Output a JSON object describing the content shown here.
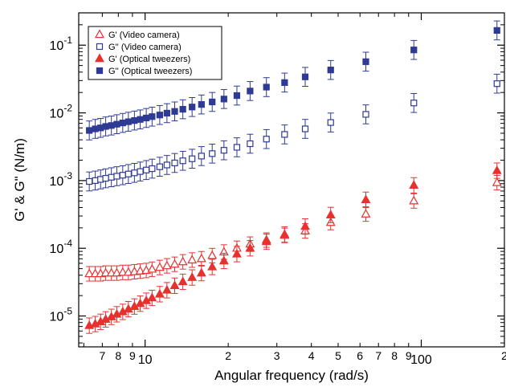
{
  "chart_data": {
    "type": "scatter",
    "xlabel": "Angular frequency (rad/s)",
    "ylabel": "G' & G\" (N/m)",
    "x_scale": "log",
    "y_scale": "log",
    "xlim": [
      5.75,
      200
    ],
    "ylim": [
      3.5e-06,
      0.3
    ],
    "grid": false,
    "legend_position": "top-left",
    "x_major_ticks": [
      {
        "value": 10,
        "label": "10"
      },
      {
        "value": 100,
        "label": "100"
      }
    ],
    "x_minor_ticks": [
      {
        "value": 7,
        "label": "7"
      },
      {
        "value": 8,
        "label": "8"
      },
      {
        "value": 9,
        "label": "9"
      },
      {
        "value": 20,
        "label": "2"
      },
      {
        "value": 30,
        "label": "3"
      },
      {
        "value": 40,
        "label": "4"
      },
      {
        "value": 50,
        "label": "5"
      },
      {
        "value": 60,
        "label": "6"
      },
      {
        "value": 70,
        "label": "7"
      },
      {
        "value": 80,
        "label": "8"
      },
      {
        "value": 90,
        "label": "9"
      },
      {
        "value": 200,
        "label": "2"
      }
    ],
    "y_major_ticks": [
      {
        "value": 1e-05,
        "base": "10",
        "exp": "-5"
      },
      {
        "value": 0.0001,
        "base": "10",
        "exp": "-4"
      },
      {
        "value": 0.001,
        "base": "10",
        "exp": "-3"
      },
      {
        "value": 0.01,
        "base": "10",
        "exp": "-2"
      },
      {
        "value": 0.1,
        "base": "10",
        "exp": "-1"
      }
    ],
    "series": [
      {
        "name": "G' (Video camera)",
        "marker": "triangle-open",
        "color": "#e8302e",
        "x": [
          6.28,
          6.6,
          6.9,
          7.2,
          7.55,
          7.9,
          8.3,
          8.7,
          9.15,
          9.6,
          10.1,
          10.6,
          11.3,
          12.0,
          12.8,
          13.7,
          14.8,
          16.0,
          17.5,
          19.3,
          21.5,
          24.0,
          27.5,
          32.0,
          38.0,
          47.0,
          63.0,
          94.0,
          188.0
        ],
        "y": [
          4.2e-05,
          4.2e-05,
          4.2e-05,
          4.3e-05,
          4.3e-05,
          4.3e-05,
          4.4e-05,
          4.4e-05,
          4.5e-05,
          4.6e-05,
          4.7e-05,
          4.9e-05,
          5.2e-05,
          5.5e-05,
          5.8e-05,
          6.3e-05,
          6.7e-05,
          7e-05,
          7.8e-05,
          8.8e-05,
          0.0001,
          0.000115,
          0.000132,
          0.000155,
          0.00018,
          0.00024,
          0.00032,
          0.0005,
          0.00093
        ],
        "err_factor": 1.28
      },
      {
        "name": "G'' (Video camera)",
        "marker": "square-open",
        "color": "#2e3a94",
        "x": [
          6.28,
          6.6,
          6.9,
          7.2,
          7.55,
          7.9,
          8.3,
          8.7,
          9.15,
          9.6,
          10.1,
          10.6,
          11.3,
          12.0,
          12.8,
          13.7,
          14.8,
          16.0,
          17.5,
          19.3,
          21.5,
          24.0,
          27.5,
          32.0,
          38.0,
          47.0,
          63.0,
          94.0,
          188.0
        ],
        "y": [
          0.00097,
          0.001,
          0.00104,
          0.00108,
          0.00112,
          0.00116,
          0.0012,
          0.00125,
          0.0013,
          0.00136,
          0.00143,
          0.0015,
          0.0016,
          0.0017,
          0.00182,
          0.00196,
          0.0021,
          0.0023,
          0.0025,
          0.0028,
          0.0031,
          0.0035,
          0.0041,
          0.0048,
          0.0058,
          0.0072,
          0.0095,
          0.014,
          0.027
        ],
        "err_factor": 1.38
      },
      {
        "name": "G' (Optical tweezers)",
        "marker": "triangle-filled",
        "color": "#e8302e",
        "x": [
          6.28,
          6.6,
          6.9,
          7.2,
          7.55,
          7.9,
          8.3,
          8.7,
          9.15,
          9.6,
          10.1,
          10.6,
          11.3,
          12.0,
          12.8,
          13.7,
          14.8,
          16.0,
          17.5,
          19.3,
          21.5,
          24.0,
          27.5,
          32.0,
          38.0,
          47.0,
          63.0,
          94.0,
          188.0
        ],
        "y": [
          7.2e-06,
          7.6e-06,
          8.2e-06,
          8.9e-06,
          9.7e-06,
          1.06e-05,
          1.15e-05,
          1.26e-05,
          1.38e-05,
          1.52e-05,
          1.68e-05,
          1.85e-05,
          2.1e-05,
          2.4e-05,
          2.8e-05,
          3.2e-05,
          3.7e-05,
          4.3e-05,
          5.3e-05,
          6.5e-05,
          8.2e-05,
          0.0001,
          0.000125,
          0.00016,
          0.00021,
          0.00031,
          0.00052,
          0.00085,
          0.0014
        ],
        "err_factor": 1.3
      },
      {
        "name": "G'' (Optical tweezers)",
        "marker": "square-filled",
        "color": "#2e3a94",
        "x": [
          6.28,
          6.6,
          6.9,
          7.2,
          7.55,
          7.9,
          8.3,
          8.7,
          9.15,
          9.6,
          10.1,
          10.6,
          11.3,
          12.0,
          12.8,
          13.7,
          14.8,
          16.0,
          17.5,
          19.3,
          21.5,
          24.0,
          27.5,
          32.0,
          38.0,
          47.0,
          63.0,
          94.0,
          188.0
        ],
        "y": [
          0.0055,
          0.0058,
          0.006,
          0.0063,
          0.0065,
          0.0068,
          0.0071,
          0.0074,
          0.0077,
          0.008,
          0.0084,
          0.0088,
          0.0093,
          0.0099,
          0.0105,
          0.0113,
          0.0122,
          0.0133,
          0.0145,
          0.016,
          0.018,
          0.021,
          0.024,
          0.028,
          0.034,
          0.043,
          0.057,
          0.085,
          0.165
        ],
        "err_factor": 1.38
      }
    ]
  }
}
